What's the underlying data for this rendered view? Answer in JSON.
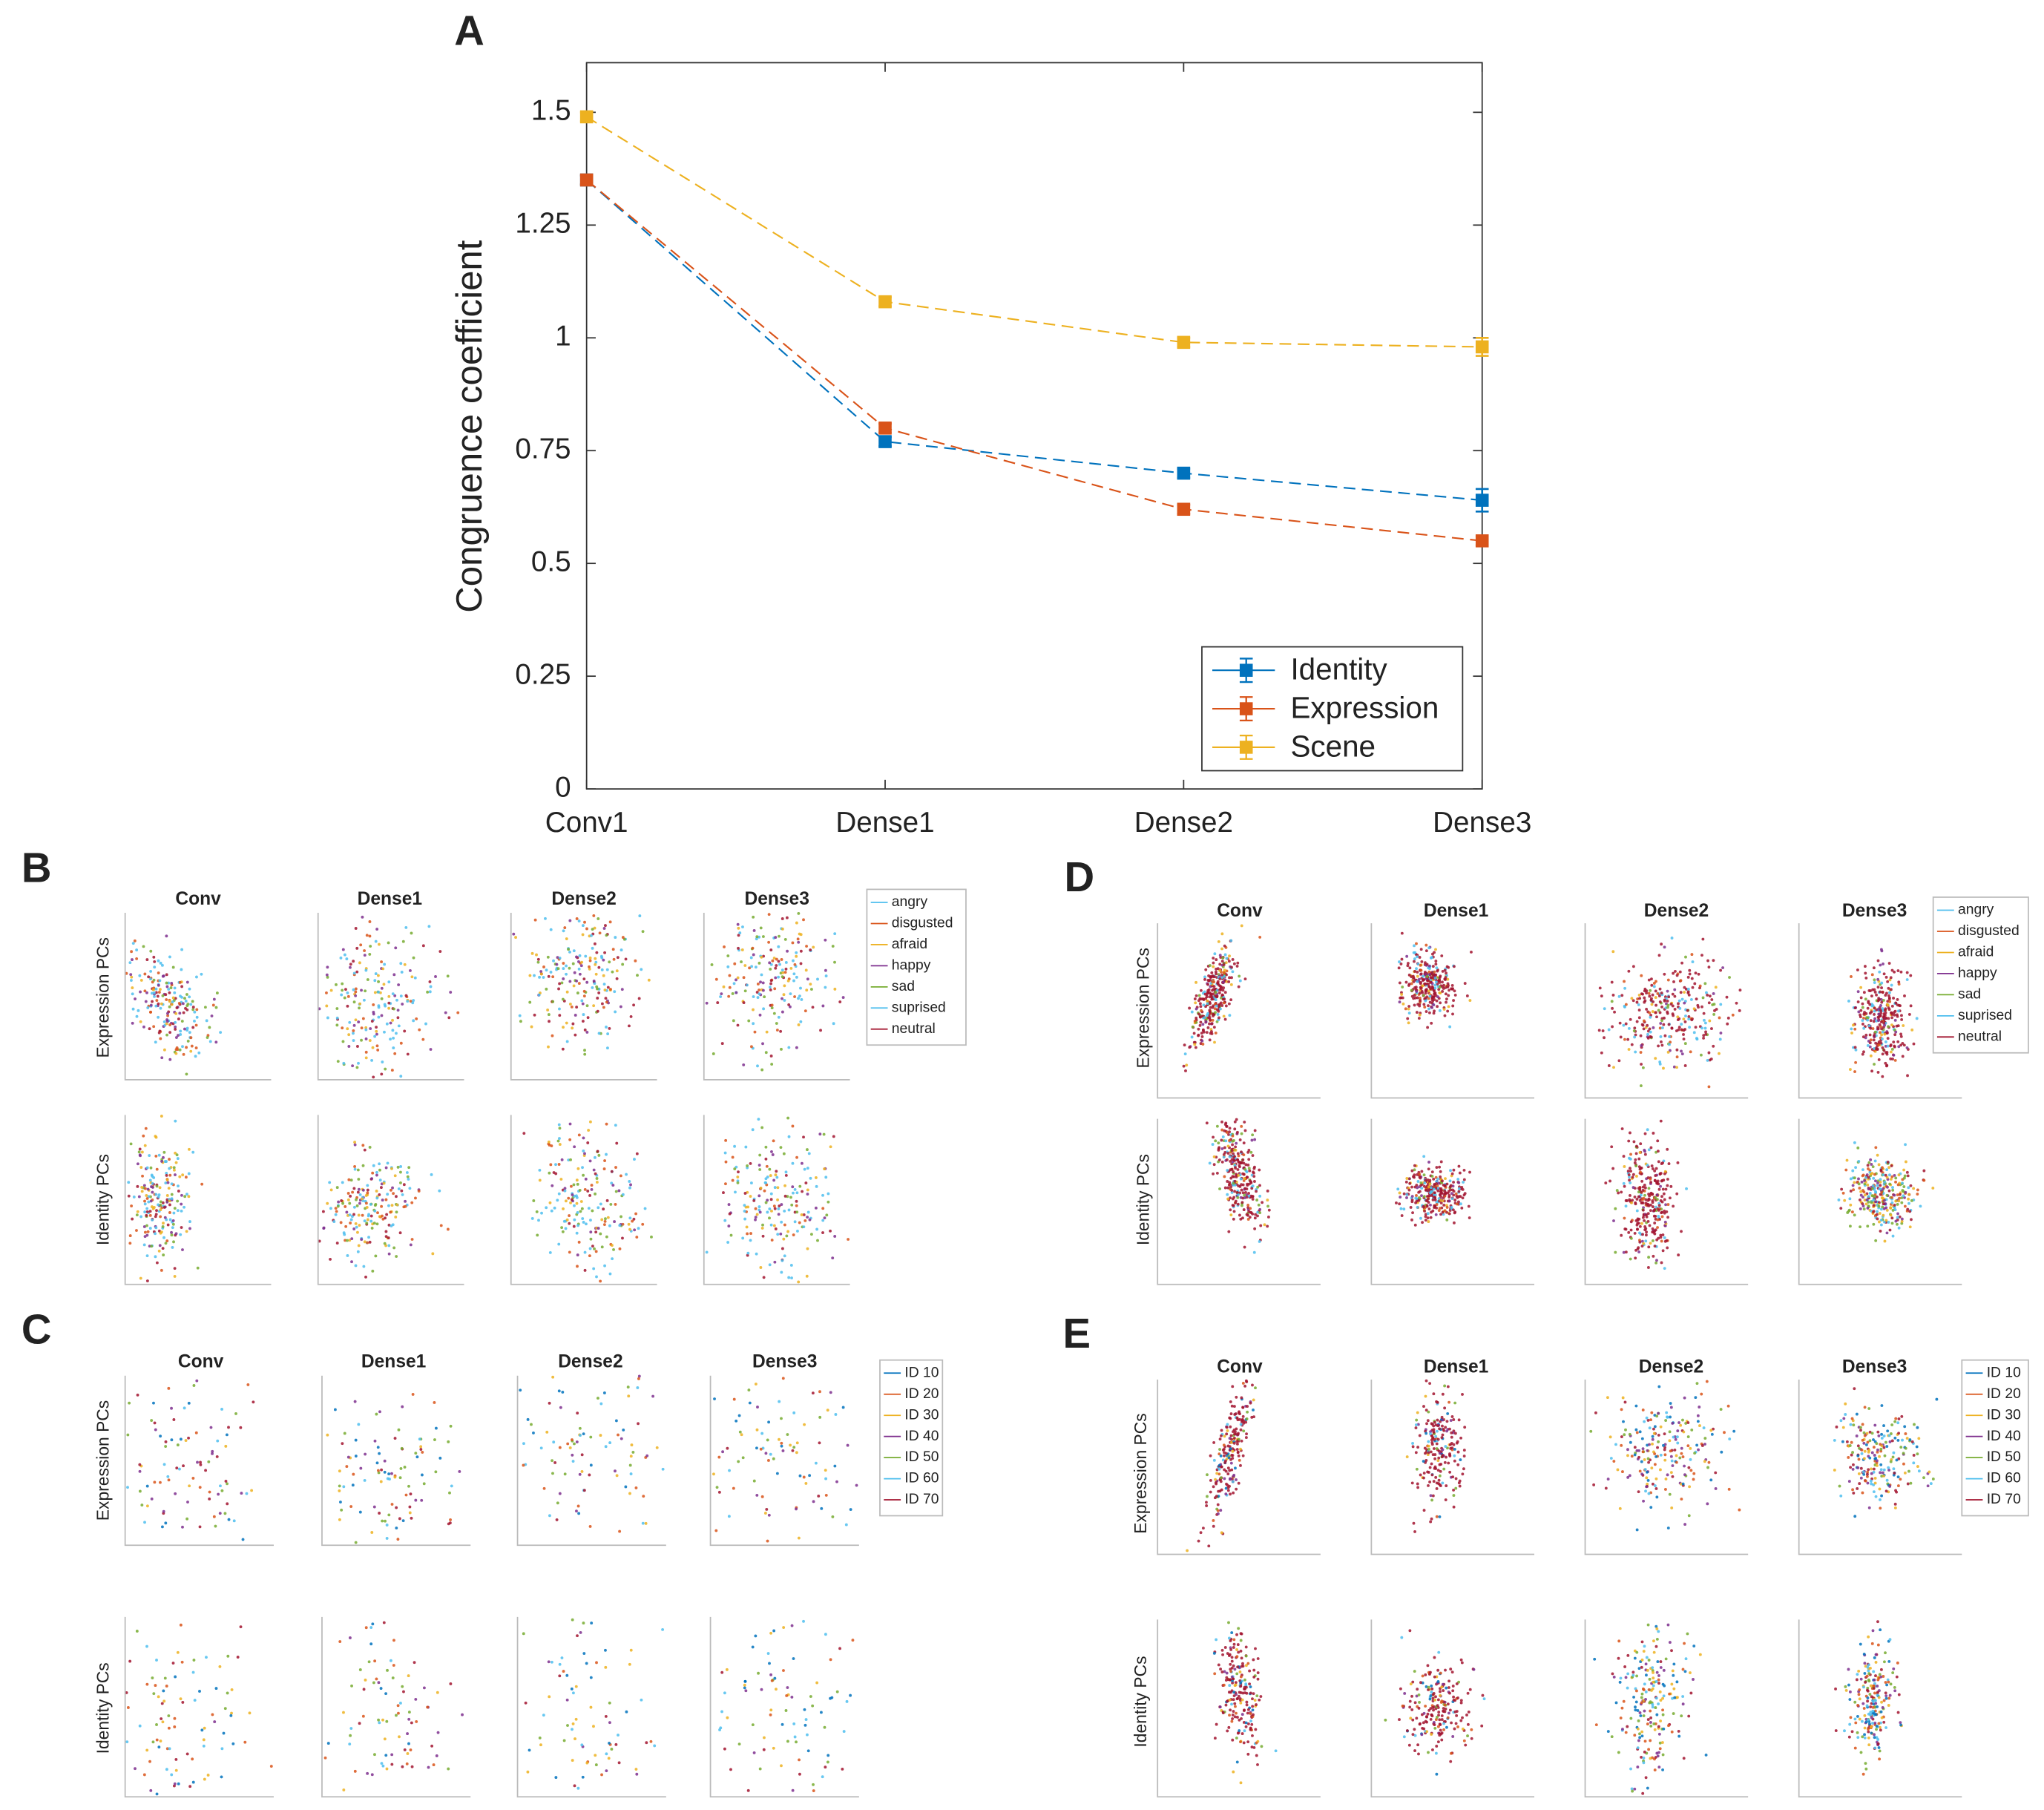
{
  "chart_data": {
    "type": "line",
    "panel_label": "A",
    "ylabel": "Congruence coefficient",
    "categories": [
      "Conv1",
      "Dense1",
      "Dense2",
      "Dense3"
    ],
    "series": [
      {
        "name": "Identity",
        "color": "#0072bd",
        "values": [
          1.35,
          0.77,
          0.7,
          0.64
        ],
        "errors": [
          0.01,
          0.01,
          0.01,
          0.025
        ]
      },
      {
        "name": "Expression",
        "color": "#d95319",
        "values": [
          1.35,
          0.8,
          0.62,
          0.55
        ],
        "errors": [
          0.01,
          0.01,
          0.01,
          0.01
        ]
      },
      {
        "name": "Scene",
        "color": "#edb120",
        "values": [
          1.49,
          1.08,
          0.99,
          0.98
        ],
        "errors": [
          0.01,
          0.01,
          0.01,
          0.02
        ]
      }
    ],
    "ylim": [
      0,
      1.61
    ],
    "yticks": [
      0,
      0.25,
      0.5,
      0.75,
      1,
      1.25,
      1.5
    ],
    "legend": "lower right"
  },
  "panels": [
    {
      "label": "B",
      "columns": [
        "Conv",
        "Dense1",
        "Dense2",
        "Dense3"
      ],
      "rows": [
        "Expression PCs",
        "Identity PCs"
      ],
      "legend": [
        "angry",
        "disgusted",
        "afraid",
        "happy",
        "sad",
        "suprised",
        "neutral"
      ],
      "colors": [
        "#4dbeee",
        "#d95319",
        "#edb120",
        "#7e2f8e",
        "#77ac30",
        "#4dbeee",
        "#a2142f"
      ]
    },
    {
      "label": "C",
      "columns": [
        "Conv",
        "Dense1",
        "Dense2",
        "Dense3"
      ],
      "rows": [
        "Expression PCs",
        "Identity PCs"
      ],
      "legend": [
        "ID 10",
        "ID 20",
        "ID 30",
        "ID 40",
        "ID 50",
        "ID 60",
        "ID 70"
      ],
      "colors": [
        "#0072bd",
        "#d95319",
        "#edb120",
        "#7e2f8e",
        "#77ac30",
        "#4dbeee",
        "#a2142f"
      ]
    },
    {
      "label": "D",
      "columns": [
        "Conv",
        "Dense1",
        "Dense2",
        "Dense3"
      ],
      "rows": [
        "Expression PCs",
        "Identity PCs"
      ],
      "legend": [
        "angry",
        "disgusted",
        "afraid",
        "happy",
        "sad",
        "suprised",
        "neutral"
      ],
      "colors": [
        "#4dbeee",
        "#d95319",
        "#edb120",
        "#7e2f8e",
        "#77ac30",
        "#4dbeee",
        "#a2142f"
      ]
    },
    {
      "label": "E",
      "columns": [
        "Conv",
        "Dense1",
        "Dense2",
        "Dense3"
      ],
      "rows": [
        "Expression PCs",
        "Identity PCs"
      ],
      "legend": [
        "ID 10",
        "ID 20",
        "ID 30",
        "ID 40",
        "ID 50",
        "ID 60",
        "ID 70"
      ],
      "colors": [
        "#0072bd",
        "#d95319",
        "#edb120",
        "#7e2f8e",
        "#77ac30",
        "#4dbeee",
        "#a2142f"
      ]
    }
  ]
}
